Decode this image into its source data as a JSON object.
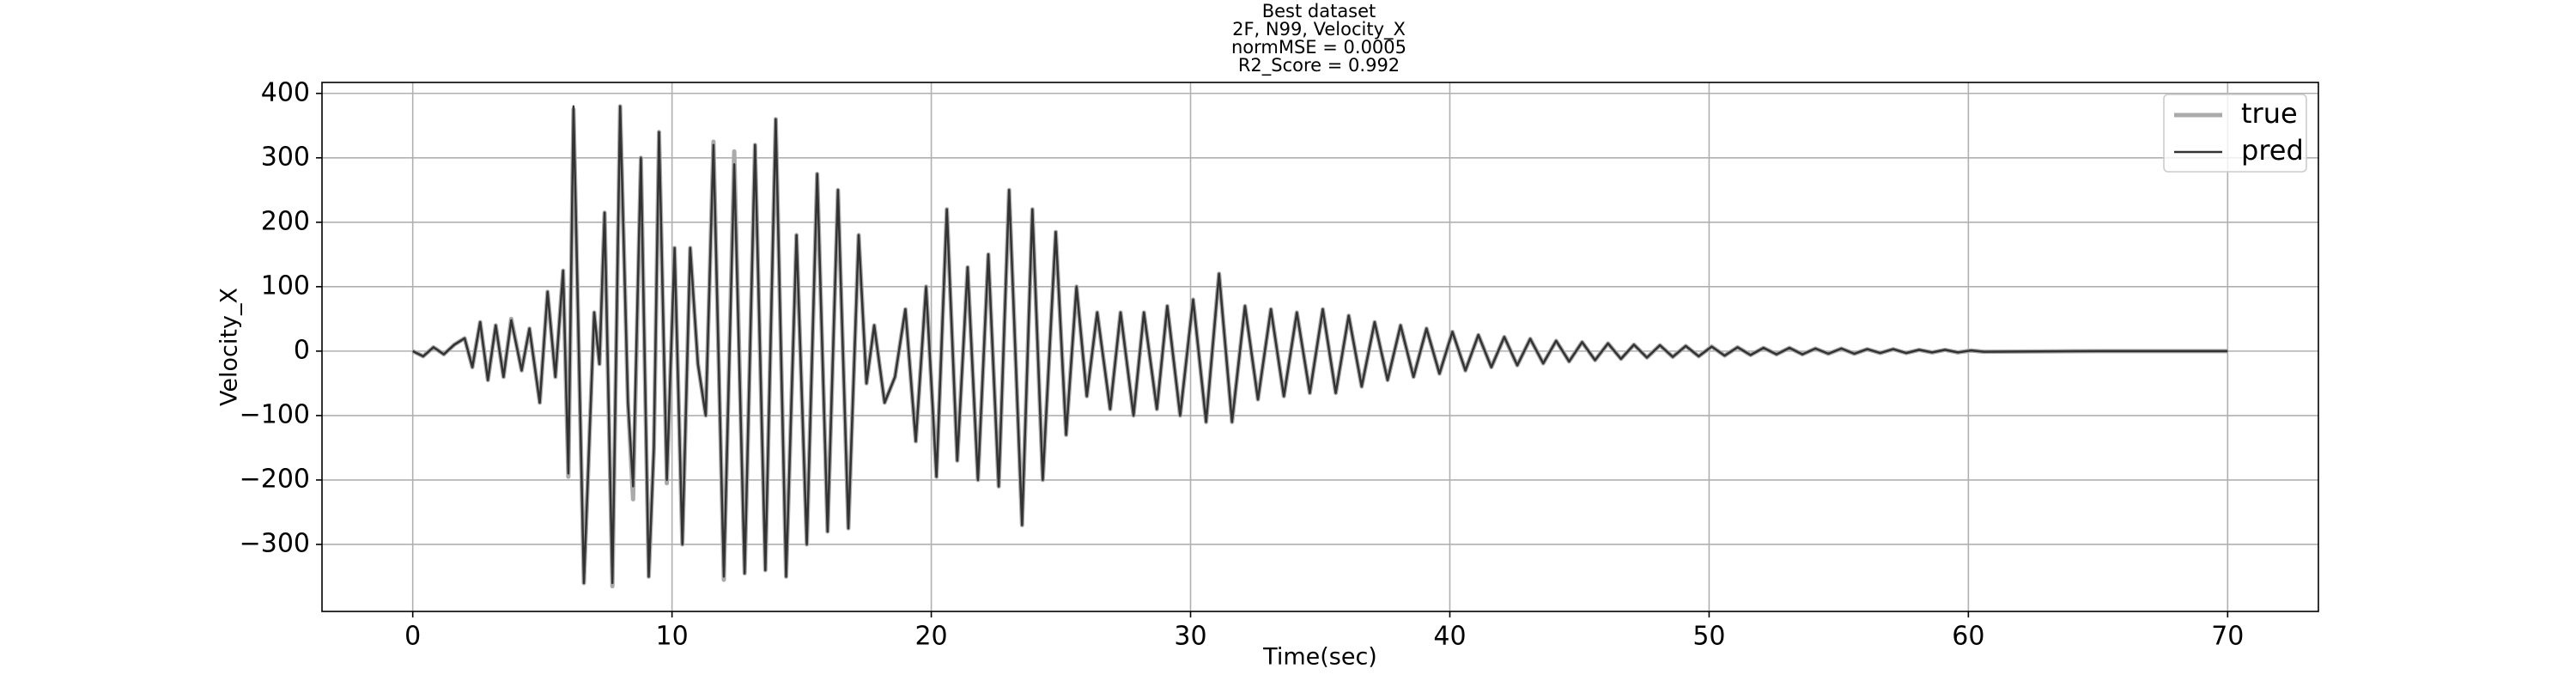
{
  "chart_data": {
    "type": "line",
    "title": [
      "Best dataset",
      "2F, N99, Velocity_X",
      "normMSE = 0.0005",
      "R2_Score = 0.992"
    ],
    "xlabel": "Time(sec)",
    "ylabel": "Velocity_X",
    "x": [
      0,
      0.4,
      0.8,
      1.2,
      1.6,
      2.0,
      2.3,
      2.6,
      2.9,
      3.2,
      3.5,
      3.8,
      4.2,
      4.5,
      4.9,
      5.2,
      5.5,
      5.8,
      6.0,
      6.2,
      6.6,
      7.0,
      7.2,
      7.4,
      7.7,
      8.0,
      8.3,
      8.5,
      8.8,
      9.1,
      9.3,
      9.5,
      9.8,
      10.1,
      10.4,
      10.7,
      11.0,
      11.3,
      11.6,
      12.0,
      12.4,
      12.8,
      13.2,
      13.6,
      14.0,
      14.4,
      14.8,
      15.2,
      15.6,
      16.0,
      16.4,
      16.8,
      17.2,
      17.5,
      17.8,
      18.2,
      18.6,
      19.0,
      19.4,
      19.8,
      20.2,
      20.6,
      21.0,
      21.4,
      21.8,
      22.2,
      22.6,
      23.0,
      23.5,
      23.9,
      24.3,
      24.8,
      25.2,
      25.6,
      26.0,
      26.4,
      26.9,
      27.3,
      27.8,
      28.2,
      28.7,
      29.1,
      29.6,
      30.1,
      30.6,
      31.1,
      31.6,
      32.1,
      32.6,
      33.1,
      33.6,
      34.1,
      34.6,
      35.1,
      35.6,
      36.1,
      36.6,
      37.1,
      37.6,
      38.1,
      38.6,
      39.1,
      39.6,
      40.1,
      40.6,
      41.1,
      41.6,
      42.1,
      42.6,
      43.1,
      43.6,
      44.1,
      44.6,
      45.1,
      45.6,
      46.1,
      46.6,
      47.1,
      47.6,
      48.1,
      48.6,
      49.1,
      49.6,
      50.1,
      50.6,
      51.1,
      51.6,
      52.1,
      52.6,
      53.1,
      53.6,
      54.1,
      54.6,
      55.1,
      55.6,
      56.1,
      56.6,
      57.1,
      57.6,
      58.1,
      58.6,
      59.1,
      59.6,
      60.1,
      60.6,
      65,
      70
    ],
    "series": [
      {
        "name": "true",
        "color": "#aaaaaa",
        "width": 5,
        "values": [
          0,
          -8,
          6,
          -5,
          10,
          20,
          -25,
          45,
          -45,
          40,
          -40,
          50,
          -30,
          35,
          -80,
          92,
          -40,
          125,
          -195,
          375,
          -360,
          60,
          -20,
          215,
          -365,
          380,
          -80,
          -230,
          300,
          -350,
          -150,
          340,
          -205,
          160,
          -300,
          160,
          -20,
          -100,
          325,
          -355,
          310,
          -345,
          320,
          -340,
          360,
          -350,
          180,
          -300,
          275,
          -280,
          250,
          -275,
          180,
          -50,
          40,
          -80,
          -40,
          65,
          -140,
          100,
          -195,
          220,
          -170,
          130,
          -200,
          150,
          -210,
          250,
          -270,
          220,
          -200,
          185,
          -130,
          100,
          -70,
          60,
          -90,
          60,
          -100,
          60,
          -90,
          70,
          -100,
          80,
          -110,
          120,
          -110,
          70,
          -75,
          65,
          -70,
          60,
          -65,
          65,
          -65,
          55,
          -55,
          45,
          -45,
          40,
          -40,
          35,
          -35,
          30,
          -30,
          25,
          -25,
          22,
          -22,
          19,
          -19,
          16,
          -16,
          14,
          -14,
          12,
          -12,
          10,
          -10,
          9,
          -9,
          8,
          -8,
          7,
          -7,
          6,
          -6,
          5,
          -5,
          5,
          -5,
          4,
          -4,
          4,
          -4,
          3,
          -3,
          3,
          -3,
          2,
          -2,
          2,
          -2,
          1,
          -1,
          0,
          0
        ]
      },
      {
        "name": "pred",
        "color": "#333333",
        "width": 2.5,
        "values": [
          0,
          -8,
          6,
          -5,
          10,
          20,
          -25,
          45,
          -45,
          40,
          -40,
          48,
          -30,
          35,
          -80,
          92,
          -40,
          125,
          -190,
          380,
          -360,
          60,
          -20,
          215,
          -360,
          380,
          -80,
          -210,
          300,
          -350,
          -150,
          340,
          -200,
          160,
          -300,
          160,
          -20,
          -100,
          320,
          -350,
          290,
          -345,
          320,
          -340,
          360,
          -350,
          180,
          -300,
          275,
          -280,
          250,
          -275,
          180,
          -50,
          40,
          -80,
          -40,
          65,
          -140,
          100,
          -195,
          220,
          -170,
          130,
          -200,
          150,
          -210,
          250,
          -270,
          220,
          -200,
          185,
          -130,
          100,
          -70,
          60,
          -90,
          60,
          -100,
          60,
          -90,
          70,
          -100,
          80,
          -110,
          120,
          -110,
          70,
          -75,
          65,
          -70,
          60,
          -65,
          65,
          -65,
          55,
          -55,
          45,
          -45,
          40,
          -40,
          35,
          -35,
          30,
          -30,
          25,
          -25,
          22,
          -22,
          19,
          -19,
          16,
          -16,
          14,
          -14,
          12,
          -12,
          10,
          -10,
          9,
          -9,
          8,
          -8,
          7,
          -7,
          6,
          -6,
          5,
          -5,
          5,
          -5,
          4,
          -4,
          4,
          -4,
          3,
          -3,
          3,
          -3,
          2,
          -2,
          2,
          -2,
          1,
          -1,
          0,
          0
        ]
      }
    ],
    "xlim": [
      -3.5,
      73.5
    ],
    "ylim": [
      -404,
      417
    ],
    "xticks": [
      0,
      10,
      20,
      30,
      40,
      50,
      60,
      70
    ],
    "yticks": [
      {
        "value": -300,
        "label": "−300"
      },
      {
        "value": -200,
        "label": "−200"
      },
      {
        "value": -100,
        "label": "−100"
      },
      0,
      100,
      200,
      300,
      400
    ],
    "grid": true,
    "legend": "upper right"
  }
}
